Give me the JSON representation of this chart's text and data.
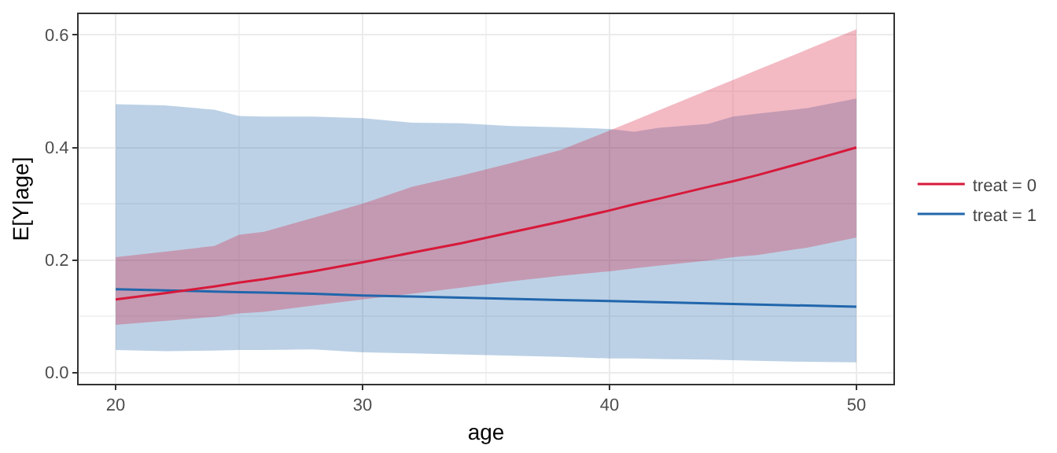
{
  "chart_data": {
    "type": "line",
    "xlabel": "age",
    "ylabel": "E[Y|age]",
    "legend": "right",
    "grid": true,
    "x": [
      20,
      22,
      24,
      25,
      26,
      28,
      30,
      32,
      34,
      36,
      38,
      40,
      41,
      42,
      44,
      45,
      46,
      48,
      50
    ],
    "xlim": [
      18.5,
      51.5
    ],
    "xticks": [
      20,
      30,
      40,
      50
    ],
    "ylim": [
      -0.02,
      0.637
    ],
    "yticks": [
      {
        "value": 0,
        "label": "0.0"
      },
      {
        "value": 0.2,
        "label": "0.2"
      },
      {
        "value": 0.4,
        "label": "0.4"
      },
      {
        "value": 0.6,
        "label": "0.6"
      }
    ],
    "series": [
      {
        "name": "treat = 1",
        "color": "#2166ac",
        "values": [
          0.148,
          0.146,
          0.144,
          0.143,
          0.142,
          0.14,
          0.137,
          0.135,
          0.133,
          0.131,
          0.129,
          0.127,
          0.126,
          0.125,
          0.123,
          0.122,
          0.121,
          0.119,
          0.117
        ],
        "lower": [
          0.04,
          0.038,
          0.039,
          0.04,
          0.04,
          0.041,
          0.036,
          0.034,
          0.032,
          0.03,
          0.028,
          0.025,
          0.025,
          0.024,
          0.023,
          0.022,
          0.021,
          0.019,
          0.018
        ],
        "upper": [
          0.477,
          0.475,
          0.467,
          0.456,
          0.455,
          0.455,
          0.452,
          0.444,
          0.443,
          0.438,
          0.436,
          0.433,
          0.428,
          0.435,
          0.442,
          0.455,
          0.46,
          0.47,
          0.487
        ]
      },
      {
        "name": "treat = 0",
        "color": "#d7193a",
        "values": [
          0.13,
          0.141,
          0.153,
          0.16,
          0.166,
          0.18,
          0.196,
          0.213,
          0.23,
          0.249,
          0.268,
          0.288,
          0.299,
          0.309,
          0.33,
          0.34,
          0.351,
          0.375,
          0.4
        ],
        "lower": [
          0.085,
          0.092,
          0.099,
          0.105,
          0.108,
          0.119,
          0.13,
          0.14,
          0.151,
          0.162,
          0.172,
          0.18,
          0.185,
          0.19,
          0.199,
          0.205,
          0.209,
          0.222,
          0.24
        ],
        "upper": [
          0.205,
          0.215,
          0.225,
          0.245,
          0.25,
          0.275,
          0.3,
          0.33,
          0.35,
          0.372,
          0.395,
          0.43,
          0.448,
          0.466,
          0.502,
          0.52,
          0.538,
          0.574,
          0.61
        ]
      }
    ]
  }
}
